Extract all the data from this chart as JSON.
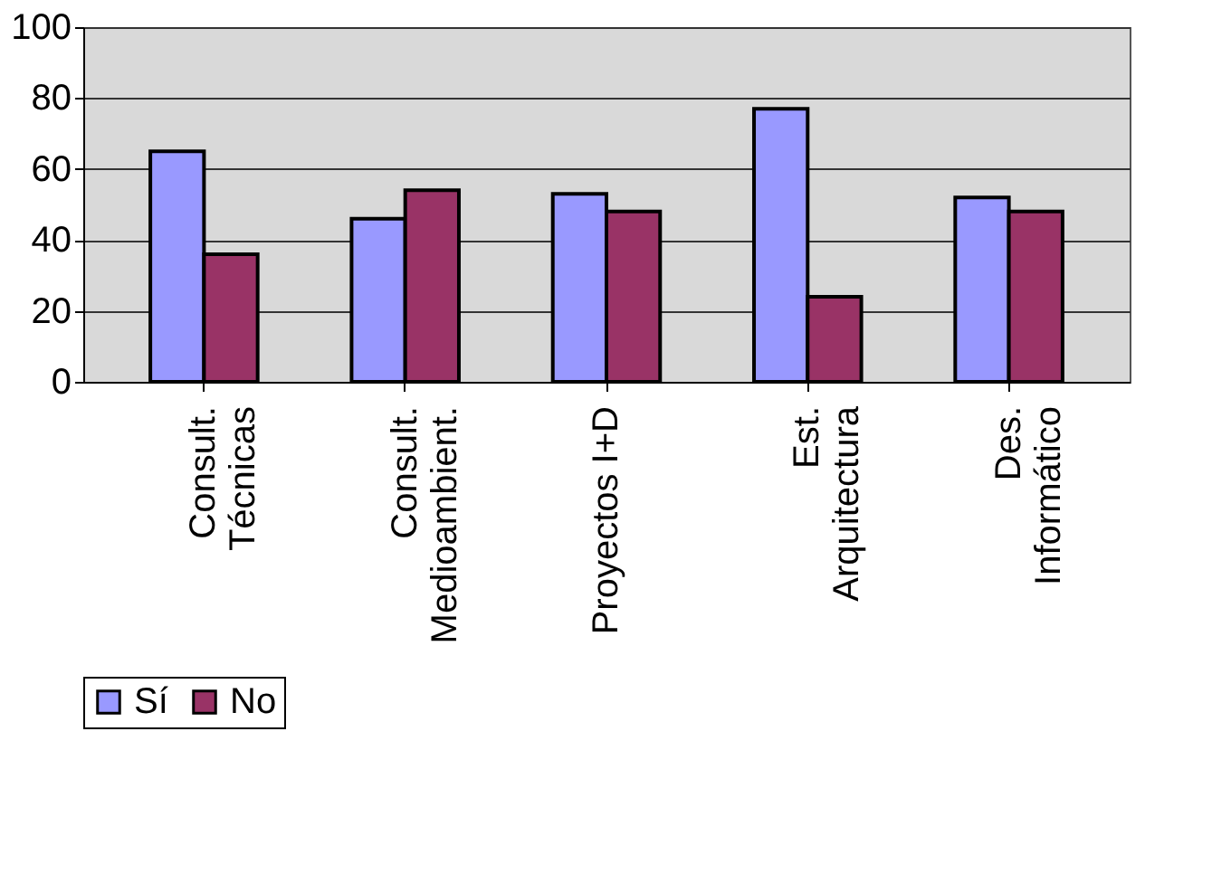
{
  "chart_data": {
    "type": "bar",
    "categories": [
      "Consult.\nTécnicas",
      "Consult.\nMedioambient.",
      "Proyectos I+D",
      "Est.\nArquitectura",
      "Des.\nInformático"
    ],
    "series": [
      {
        "name": "Sí",
        "color": "#9999ff",
        "values": [
          65,
          46,
          53,
          77,
          52
        ]
      },
      {
        "name": "No",
        "color": "#993366",
        "values": [
          36,
          54,
          48,
          24,
          48
        ]
      }
    ],
    "ylim": [
      0,
      100
    ],
    "yticks": [
      0,
      20,
      40,
      60,
      80,
      100
    ],
    "grid": "y",
    "legend": "bottom"
  }
}
